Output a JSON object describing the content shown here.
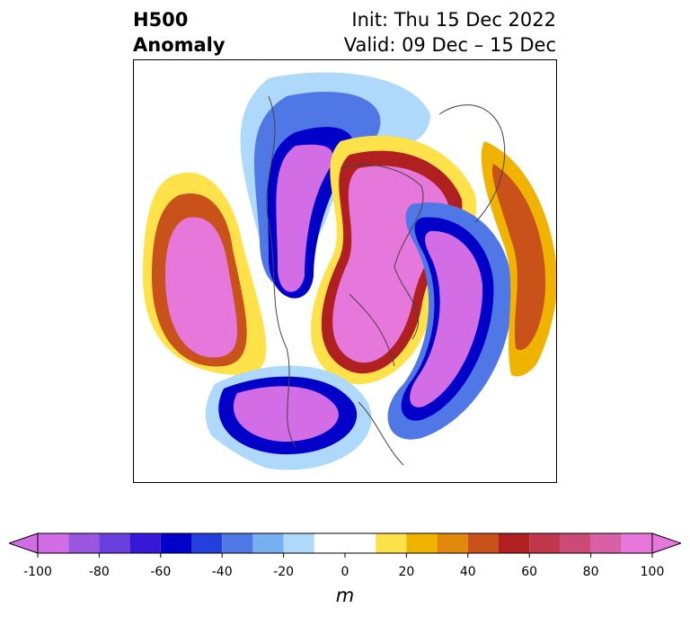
{
  "header": {
    "title_line1": "H500",
    "title_line2": "Anomaly",
    "init_text": "Init: Thu 15 Dec 2022",
    "valid_text": "Valid: 09 Dec – 15 Dec"
  },
  "map": {
    "projection": "north-polar-stereographic",
    "field": "500 hPa geopotential height anomaly"
  },
  "colorbar": {
    "units": "m",
    "extend": "both",
    "ticks": [
      "-100",
      "-80",
      "-60",
      "-40",
      "-20",
      "0",
      "20",
      "40",
      "60",
      "80",
      "100"
    ],
    "levels": [
      -100,
      -90,
      -80,
      -70,
      -60,
      -50,
      -40,
      -30,
      -20,
      -10,
      10,
      20,
      30,
      40,
      50,
      60,
      70,
      80,
      90,
      100
    ],
    "colors": [
      "#d26de6",
      "#9b56e0",
      "#6b3ee0",
      "#3818d6",
      "#0000c8",
      "#2340dc",
      "#4f77e6",
      "#78aef2",
      "#aed9fa",
      "#ffffff",
      "#ffe24a",
      "#f0b400",
      "#e0880c",
      "#c8521a",
      "#b02020",
      "#c0364a",
      "#cc4a78",
      "#d860a6",
      "#e578da"
    ],
    "under_color": "#d26de6",
    "over_color": "#e578da"
  }
}
